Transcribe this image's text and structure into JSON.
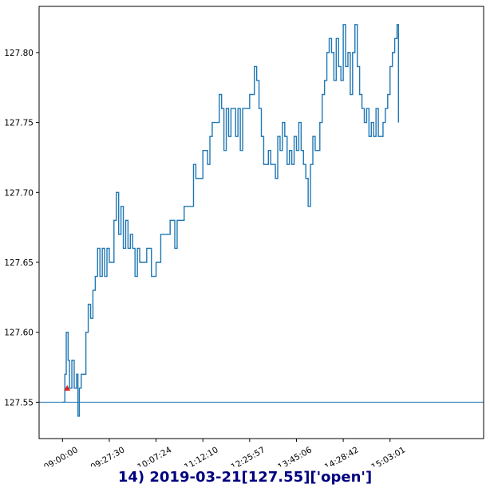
{
  "chart_data": {
    "type": "line",
    "title": "14) 2019-03-21[127.55]['open']",
    "title_color": "#000080",
    "line_color": "#1f77b4",
    "marker_color": "#d62728",
    "hline": 127.55,
    "marker": {
      "x": 0.01,
      "y": 127.56,
      "shape": "triangle-up"
    },
    "x_tick_labels": [
      "09:00:00",
      "09:27:30",
      "10:07:24",
      "11:12:10",
      "12:25:57",
      "13:45:06",
      "14:28:42",
      "15:03:01"
    ],
    "x_tick_positions": [
      0,
      0.1,
      0.2,
      0.3,
      0.4,
      0.5,
      0.6,
      0.7
    ],
    "xlim": [
      -0.05,
      0.9
    ],
    "ylim": [
      127.524,
      127.833
    ],
    "y_ticks": [
      127.55,
      127.6,
      127.65,
      127.7,
      127.75,
      127.8
    ],
    "y_tick_labels": [
      "127.55",
      "127.60",
      "127.65",
      "127.70",
      "127.75",
      "127.80"
    ],
    "grid": false,
    "series": [
      {
        "points": [
          [
            0.0,
            127.55
          ],
          [
            0.005,
            127.57
          ],
          [
            0.008,
            127.6
          ],
          [
            0.012,
            127.58
          ],
          [
            0.015,
            127.56
          ],
          [
            0.02,
            127.58
          ],
          [
            0.025,
            127.56
          ],
          [
            0.03,
            127.57
          ],
          [
            0.033,
            127.54
          ],
          [
            0.036,
            127.56
          ],
          [
            0.04,
            127.57
          ],
          [
            0.045,
            127.57
          ],
          [
            0.05,
            127.6
          ],
          [
            0.055,
            127.62
          ],
          [
            0.06,
            127.61
          ],
          [
            0.065,
            127.63
          ],
          [
            0.07,
            127.64
          ],
          [
            0.075,
            127.66
          ],
          [
            0.08,
            127.64
          ],
          [
            0.085,
            127.66
          ],
          [
            0.09,
            127.64
          ],
          [
            0.095,
            127.66
          ],
          [
            0.1,
            127.65
          ],
          [
            0.11,
            127.68
          ],
          [
            0.115,
            127.7
          ],
          [
            0.12,
            127.67
          ],
          [
            0.125,
            127.69
          ],
          [
            0.13,
            127.66
          ],
          [
            0.135,
            127.68
          ],
          [
            0.14,
            127.66
          ],
          [
            0.145,
            127.67
          ],
          [
            0.15,
            127.66
          ],
          [
            0.155,
            127.64
          ],
          [
            0.16,
            127.66
          ],
          [
            0.165,
            127.65
          ],
          [
            0.175,
            127.65
          ],
          [
            0.18,
            127.66
          ],
          [
            0.19,
            127.64
          ],
          [
            0.2,
            127.65
          ],
          [
            0.21,
            127.67
          ],
          [
            0.22,
            127.67
          ],
          [
            0.23,
            127.68
          ],
          [
            0.24,
            127.66
          ],
          [
            0.245,
            127.68
          ],
          [
            0.25,
            127.68
          ],
          [
            0.26,
            127.69
          ],
          [
            0.27,
            127.69
          ],
          [
            0.28,
            127.72
          ],
          [
            0.285,
            127.71
          ],
          [
            0.29,
            127.71
          ],
          [
            0.3,
            127.73
          ],
          [
            0.31,
            127.72
          ],
          [
            0.315,
            127.74
          ],
          [
            0.32,
            127.75
          ],
          [
            0.33,
            127.75
          ],
          [
            0.335,
            127.77
          ],
          [
            0.34,
            127.76
          ],
          [
            0.345,
            127.73
          ],
          [
            0.35,
            127.76
          ],
          [
            0.355,
            127.74
          ],
          [
            0.36,
            127.76
          ],
          [
            0.365,
            127.76
          ],
          [
            0.37,
            127.74
          ],
          [
            0.375,
            127.76
          ],
          [
            0.38,
            127.73
          ],
          [
            0.385,
            127.76
          ],
          [
            0.39,
            127.76
          ],
          [
            0.395,
            127.76
          ],
          [
            0.4,
            127.77
          ],
          [
            0.405,
            127.77
          ],
          [
            0.41,
            127.79
          ],
          [
            0.415,
            127.78
          ],
          [
            0.42,
            127.76
          ],
          [
            0.425,
            127.74
          ],
          [
            0.43,
            127.72
          ],
          [
            0.435,
            127.72
          ],
          [
            0.44,
            127.73
          ],
          [
            0.445,
            127.72
          ],
          [
            0.45,
            127.72
          ],
          [
            0.455,
            127.71
          ],
          [
            0.46,
            127.74
          ],
          [
            0.465,
            127.73
          ],
          [
            0.47,
            127.75
          ],
          [
            0.475,
            127.74
          ],
          [
            0.48,
            127.72
          ],
          [
            0.485,
            127.73
          ],
          [
            0.49,
            127.72
          ],
          [
            0.495,
            127.74
          ],
          [
            0.5,
            127.73
          ],
          [
            0.505,
            127.75
          ],
          [
            0.51,
            127.73
          ],
          [
            0.515,
            127.72
          ],
          [
            0.52,
            127.71
          ],
          [
            0.525,
            127.69
          ],
          [
            0.53,
            127.72
          ],
          [
            0.535,
            127.74
          ],
          [
            0.54,
            127.73
          ],
          [
            0.545,
            127.73
          ],
          [
            0.55,
            127.75
          ],
          [
            0.555,
            127.77
          ],
          [
            0.56,
            127.78
          ],
          [
            0.565,
            127.8
          ],
          [
            0.57,
            127.81
          ],
          [
            0.575,
            127.8
          ],
          [
            0.58,
            127.78
          ],
          [
            0.585,
            127.81
          ],
          [
            0.59,
            127.79
          ],
          [
            0.595,
            127.78
          ],
          [
            0.6,
            127.82
          ],
          [
            0.605,
            127.79
          ],
          [
            0.61,
            127.8
          ],
          [
            0.615,
            127.77
          ],
          [
            0.62,
            127.8
          ],
          [
            0.625,
            127.82
          ],
          [
            0.63,
            127.79
          ],
          [
            0.635,
            127.77
          ],
          [
            0.64,
            127.76
          ],
          [
            0.645,
            127.75
          ],
          [
            0.65,
            127.76
          ],
          [
            0.655,
            127.74
          ],
          [
            0.66,
            127.75
          ],
          [
            0.665,
            127.74
          ],
          [
            0.67,
            127.76
          ],
          [
            0.675,
            127.74
          ],
          [
            0.68,
            127.74
          ],
          [
            0.685,
            127.75
          ],
          [
            0.69,
            127.76
          ],
          [
            0.695,
            127.77
          ],
          [
            0.7,
            127.79
          ],
          [
            0.705,
            127.8
          ],
          [
            0.71,
            127.81
          ],
          [
            0.715,
            127.82
          ],
          [
            0.718,
            127.75
          ]
        ]
      }
    ]
  }
}
